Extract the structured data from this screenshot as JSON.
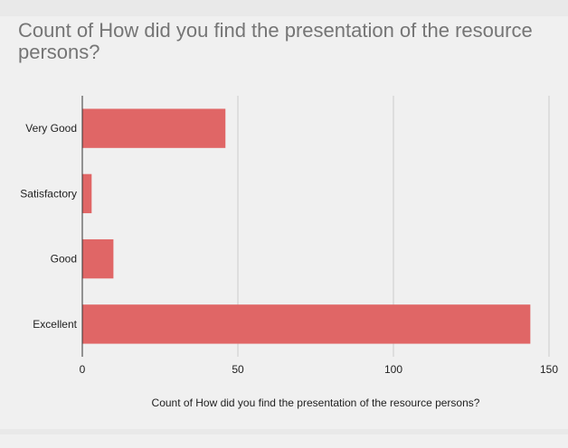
{
  "chart_data": {
    "type": "bar",
    "orientation": "horizontal",
    "title": "Count of How did you find the presentation of the resource persons?",
    "xlabel": "Count of How did you find the presentation of the resource persons?",
    "ylabel": "",
    "categories": [
      "Very Good",
      "Satisfactory",
      "Good",
      "Excellent"
    ],
    "values": [
      46,
      3,
      10,
      144
    ],
    "xlim": [
      0,
      150
    ],
    "xticks": [
      "0",
      "50",
      "100",
      "150"
    ],
    "grid": true,
    "legend": "none",
    "bar_color": "#e06666"
  }
}
